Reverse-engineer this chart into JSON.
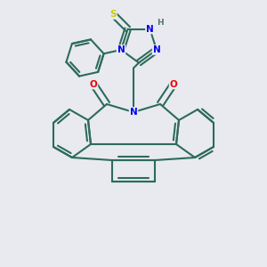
{
  "background_color": "#e8eaf0",
  "bond_color": "#2d6b5a",
  "bond_width": 1.5,
  "atom_colors": {
    "N": "#0000ee",
    "O": "#ee0000",
    "S": "#cccc00",
    "H": "#557766"
  },
  "figsize": [
    3.0,
    3.0
  ],
  "dpi": 100
}
